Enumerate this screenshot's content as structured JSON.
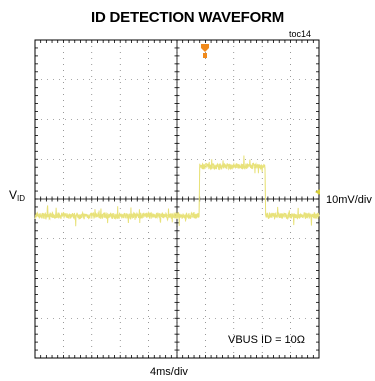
{
  "chart_data": {
    "type": "line",
    "title": "ID DETECTION WAVEFORM",
    "figure_code": "toc14",
    "ylabel_main": "V",
    "ylabel_sub": "ID",
    "vertical_scale": "10mV/div",
    "time_scale": "4ms/div",
    "annotation": "VBUS ID = 10Ω",
    "divisions": {
      "x": 10,
      "y": 8
    },
    "grid": true,
    "trace_color": "#e8e27a",
    "trigger_marker_color": "#f08a1c",
    "series": [
      {
        "x_div": [
          0,
          5.78,
          5.8,
          8.1,
          8.12,
          10
        ],
        "y_div": [
          -0.42,
          -0.42,
          0.82,
          0.82,
          -0.42,
          -0.42
        ],
        "noise_div": 0.08
      }
    ]
  }
}
